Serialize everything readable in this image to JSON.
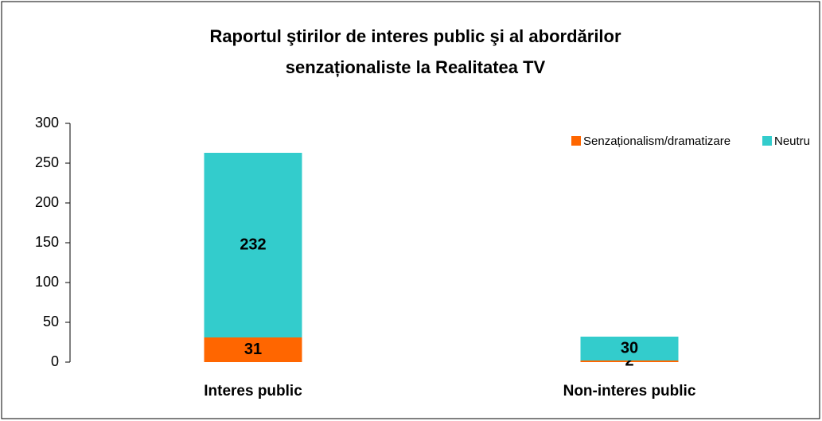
{
  "chart_data": {
    "type": "stacked_bar",
    "title": [
      "Raportul ştirilor de interes public şi al abordărilor",
      "senzaționaliste la Realitatea TV"
    ],
    "categories": [
      "Interes public",
      "Non-interes public"
    ],
    "series": [
      {
        "name": "Senzaționalism/dramatizare",
        "color": "#ff6600",
        "values": [
          31,
          2
        ]
      },
      {
        "name": "Neutru",
        "color": "#33cccc",
        "values": [
          232,
          30
        ]
      }
    ],
    "ylim": [
      0,
      300
    ],
    "yticks": [
      0,
      50,
      100,
      150,
      200,
      250,
      300
    ],
    "legend": "top-right",
    "grid": false
  }
}
